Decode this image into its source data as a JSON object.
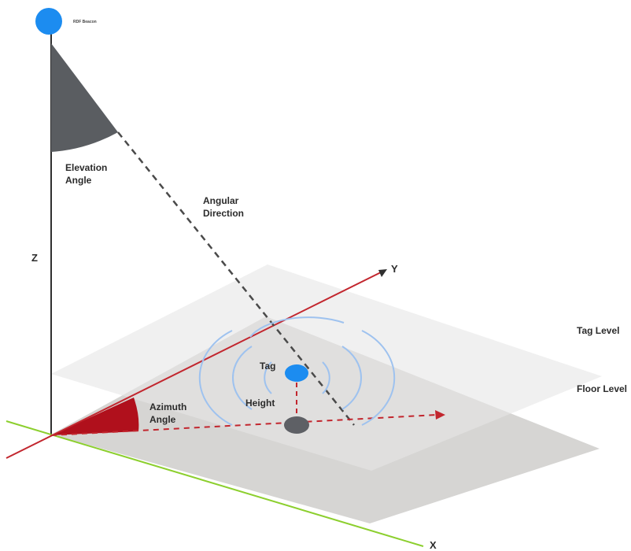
{
  "beacon": {
    "label": "RDF Beacon",
    "color": "#1c8cf0"
  },
  "angles": {
    "elevation": {
      "line1": "Elevation",
      "line2": "Angle",
      "color": "#5a5d61"
    },
    "azimuth": {
      "line1": "Azimuth",
      "line2": "Angle",
      "color": "#b0101c"
    }
  },
  "direction": {
    "line1": "Angular",
    "line2": "Direction"
  },
  "axes": {
    "x": "X",
    "y": "Y",
    "z": "Z",
    "x_color": "#8ccf2e",
    "y_color": "#c2262e"
  },
  "levels": {
    "tag": "Tag Level",
    "floor": "Floor Level"
  },
  "tag": {
    "label": "Tag",
    "color": "#1c8cf0",
    "height_label": "Height",
    "wave_color": "#9ec2ef"
  },
  "floor_point": {
    "color": "#5e6065"
  }
}
